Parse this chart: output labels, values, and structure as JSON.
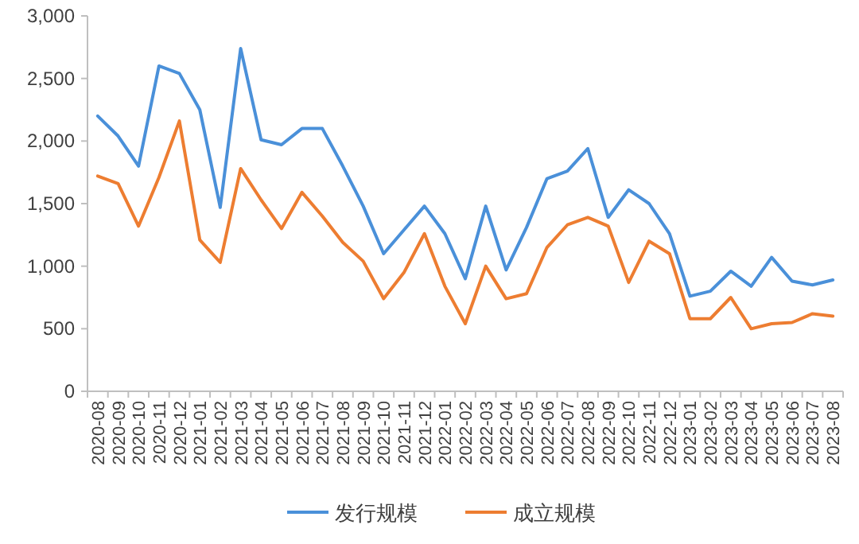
{
  "chart_data": {
    "type": "line",
    "categories": [
      "2020-08",
      "2020-09",
      "2020-10",
      "2020-11",
      "2020-12",
      "2021-01",
      "2021-02",
      "2021-03",
      "2021-04",
      "2021-05",
      "2021-06",
      "2021-07",
      "2021-08",
      "2021-09",
      "2021-10",
      "2021-11",
      "2021-12",
      "2022-01",
      "2022-02",
      "2022-03",
      "2022-04",
      "2022-05",
      "2022-06",
      "2022-07",
      "2022-08",
      "2022-09",
      "2022-10",
      "2022-11",
      "2022-12",
      "2023-01",
      "2023-02",
      "2023-03",
      "2023-04",
      "2023-05",
      "2023-06",
      "2023-07",
      "2023-08"
    ],
    "series": [
      {
        "name": "发行规模",
        "color": "#4a90d9",
        "values": [
          2200,
          2040,
          1800,
          2600,
          2540,
          2250,
          1470,
          2740,
          2010,
          1970,
          2100,
          2100,
          1800,
          1480,
          1100,
          1290,
          1480,
          1260,
          900,
          1480,
          970,
          1310,
          1700,
          1760,
          1940,
          1390,
          1610,
          1500,
          1260,
          760,
          800,
          960,
          840,
          1070,
          880,
          850,
          890
        ]
      },
      {
        "name": "成立规模",
        "color": "#ed7d31",
        "values": [
          1720,
          1660,
          1320,
          1710,
          2160,
          1210,
          1030,
          1780,
          1530,
          1300,
          1590,
          1400,
          1190,
          1040,
          740,
          950,
          1260,
          840,
          540,
          1000,
          740,
          780,
          1150,
          1330,
          1390,
          1320,
          870,
          1200,
          1100,
          580,
          580,
          750,
          500,
          540,
          550,
          620,
          600
        ]
      }
    ],
    "ylim": [
      0,
      3000
    ],
    "yticks": [
      {
        "value": 0,
        "label": "0"
      },
      {
        "value": 500,
        "label": "500"
      },
      {
        "value": 1000,
        "label": "1,000"
      },
      {
        "value": 1500,
        "label": "1,500"
      },
      {
        "value": 2000,
        "label": "2,000"
      },
      {
        "value": 2500,
        "label": "2,500"
      },
      {
        "value": 3000,
        "label": "3,000"
      }
    ],
    "grid": false,
    "legend": "bottom",
    "marker": "none",
    "line_style": "solid"
  }
}
